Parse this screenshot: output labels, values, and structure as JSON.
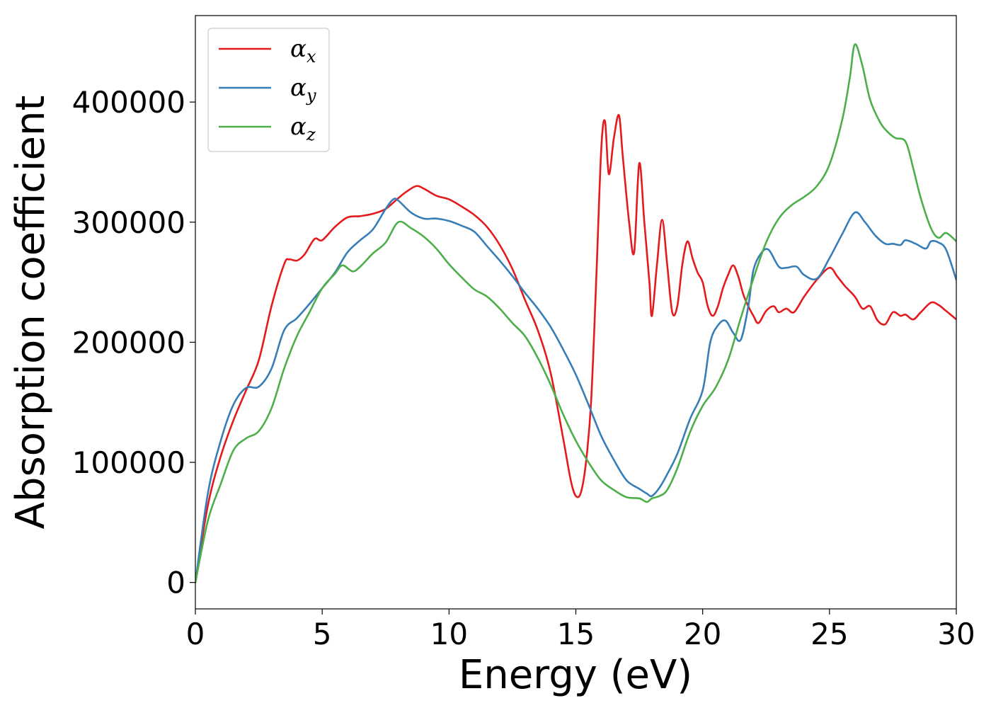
{
  "chart_data": {
    "type": "line",
    "title": "",
    "xlabel": "Energy (eV)",
    "ylabel": "Absorption coefficient",
    "xlim": [
      0,
      30
    ],
    "ylim": [
      -22000,
      472000
    ],
    "xticks": [
      0,
      5,
      10,
      15,
      20,
      25,
      30
    ],
    "xtick_labels": [
      "0",
      "5",
      "10",
      "15",
      "20",
      "25",
      "30"
    ],
    "yticks": [
      0,
      100000,
      200000,
      300000,
      400000
    ],
    "ytick_labels": [
      "0",
      "100000",
      "200000",
      "300000",
      "400000"
    ],
    "grid": false,
    "legend": {
      "placement": "upper-left"
    },
    "series": [
      {
        "name": "α",
        "subscript": "x",
        "color": "#e41a1c",
        "x": [
          0,
          0.5,
          1,
          1.5,
          2,
          2.5,
          3,
          3.5,
          3.7,
          4,
          4.3,
          4.7,
          5,
          5.5,
          6,
          6.5,
          7,
          7.5,
          8,
          8.3,
          8.7,
          9,
          9.5,
          10,
          10.5,
          11,
          11.5,
          12,
          12.5,
          13,
          13.5,
          14,
          14.5,
          14.8,
          15,
          15.2,
          15.4,
          15.6,
          15.8,
          16,
          16.15,
          16.3,
          16.5,
          16.7,
          16.85,
          17.1,
          17.3,
          17.5,
          17.7,
          17.9,
          18,
          18.2,
          18.4,
          18.6,
          18.8,
          19,
          19.2,
          19.4,
          19.6,
          19.8,
          20,
          20.2,
          20.4,
          20.6,
          20.8,
          21,
          21.2,
          21.4,
          21.6,
          21.8,
          22,
          22.2,
          22.5,
          22.8,
          23,
          23.3,
          23.6,
          24,
          24.5,
          25,
          25.3,
          25.6,
          26,
          26.3,
          26.6,
          26.9,
          27.2,
          27.5,
          27.8,
          28,
          28.3,
          28.6,
          29,
          29.3,
          29.6,
          30
        ],
        "y": [
          0,
          65000,
          105000,
          135000,
          160000,
          185000,
          230000,
          265000,
          269000,
          268000,
          273000,
          286000,
          285000,
          296000,
          304000,
          305000,
          307000,
          311000,
          320000,
          325000,
          330000,
          328000,
          322000,
          319000,
          313000,
          306000,
          296000,
          281000,
          261000,
          235000,
          210000,
          175000,
          120000,
          85000,
          72000,
          75000,
          100000,
          150000,
          250000,
          360000,
          384000,
          340000,
          370000,
          389000,
          355000,
          300000,
          275000,
          349000,
          300000,
          250000,
          222000,
          265000,
          302000,
          265000,
          225000,
          230000,
          265000,
          284000,
          270000,
          258000,
          250000,
          230000,
          222000,
          230000,
          245000,
          256000,
          264000,
          255000,
          240000,
          230000,
          222000,
          216000,
          226000,
          230000,
          225000,
          228000,
          225000,
          238000,
          252000,
          262000,
          255000,
          247000,
          238000,
          228000,
          230000,
          218000,
          215000,
          225000,
          222000,
          223000,
          219000,
          225000,
          233000,
          231000,
          226000,
          219000
        ]
      },
      {
        "name": "α",
        "subscript": "y",
        "color": "#377eb8",
        "x": [
          0,
          0.5,
          1,
          1.5,
          2,
          2.5,
          3,
          3.5,
          4,
          4.5,
          5,
          5.5,
          6,
          6.5,
          7,
          7.5,
          7.8,
          8,
          8.5,
          9,
          9.5,
          10,
          10.5,
          11,
          11.5,
          12,
          12.5,
          13,
          13.5,
          14,
          14.5,
          15,
          15.5,
          16,
          16.5,
          17,
          17.5,
          17.8,
          18,
          18.3,
          18.6,
          19,
          19.5,
          20,
          20.3,
          20.6,
          20.9,
          21.2,
          21.5,
          21.8,
          22,
          22.3,
          22.6,
          23,
          23.3,
          23.7,
          24,
          24.5,
          25,
          25.5,
          26,
          26.4,
          26.8,
          27.2,
          27.5,
          27.8,
          28,
          28.4,
          28.8,
          29,
          29.3,
          29.6,
          30
        ],
        "y": [
          0,
          75000,
          118000,
          148000,
          162000,
          163000,
          178000,
          210000,
          220000,
          232000,
          245000,
          258000,
          275000,
          285000,
          294000,
          311000,
          319000,
          318000,
          308000,
          303000,
          303000,
          301000,
          297000,
          292000,
          280000,
          268000,
          255000,
          241000,
          228000,
          213000,
          194000,
          173000,
          148000,
          122000,
          102000,
          85000,
          78000,
          74000,
          72000,
          79000,
          90000,
          107000,
          136000,
          160000,
          200000,
          214000,
          218000,
          208000,
          202000,
          230000,
          260000,
          274000,
          277000,
          263000,
          262000,
          263000,
          256000,
          253000,
          270000,
          290000,
          308000,
          300000,
          289000,
          282000,
          282000,
          281000,
          285000,
          282000,
          278000,
          284000,
          283000,
          277000,
          252000
        ]
      },
      {
        "name": "α",
        "subscript": "z",
        "color": "#4daf4a",
        "x": [
          0,
          0.5,
          1,
          1.5,
          2,
          2.5,
          3,
          3.5,
          4,
          4.5,
          5,
          5.5,
          5.8,
          6.2,
          6.5,
          7,
          7.5,
          8,
          8.5,
          9,
          9.5,
          10,
          10.5,
          11,
          11.5,
          12,
          12.5,
          13,
          13.5,
          14,
          14.5,
          15,
          15.5,
          16,
          16.5,
          17,
          17.5,
          17.8,
          18,
          18.3,
          18.6,
          19,
          19.5,
          20,
          20.5,
          21,
          21.5,
          22,
          22.5,
          23,
          23.5,
          24,
          24.5,
          25,
          25.5,
          25.8,
          26,
          26.3,
          26.6,
          27,
          27.3,
          27.6,
          28,
          28.3,
          28.6,
          29,
          29.3,
          29.6,
          30
        ],
        "y": [
          0,
          52000,
          82000,
          110000,
          120000,
          126000,
          145000,
          178000,
          205000,
          225000,
          245000,
          257000,
          264000,
          259000,
          263000,
          274000,
          283000,
          300000,
          295000,
          288000,
          278000,
          265000,
          254000,
          244000,
          238000,
          228000,
          216000,
          205000,
          187000,
          165000,
          140000,
          118000,
          100000,
          85000,
          77000,
          71000,
          70000,
          67000,
          70000,
          72000,
          77000,
          95000,
          125000,
          147000,
          162000,
          185000,
          220000,
          253000,
          283000,
          303000,
          314000,
          321000,
          330000,
          348000,
          385000,
          420000,
          448000,
          430000,
          402000,
          383000,
          375000,
          370000,
          367000,
          345000,
          320000,
          295000,
          287000,
          291000,
          284000
        ]
      }
    ]
  }
}
